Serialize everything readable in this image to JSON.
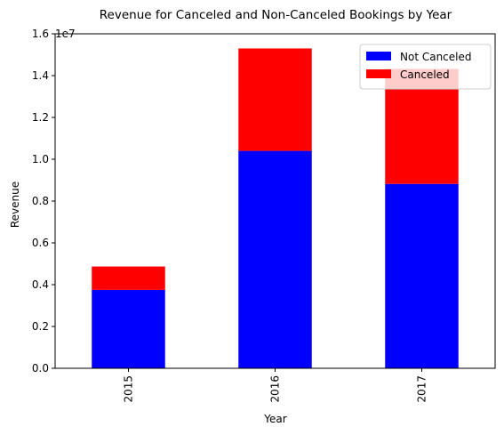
{
  "chart_data": {
    "type": "bar",
    "stacked": true,
    "title": "Revenue for Canceled and Non-Canceled Bookings by Year",
    "xlabel": "Year",
    "ylabel": "Revenue",
    "y_offset_label": "1e7",
    "categories": [
      "2015",
      "2016",
      "2017"
    ],
    "ylim": [
      0,
      16000000
    ],
    "yticks": [
      0,
      2000000,
      4000000,
      6000000,
      8000000,
      10000000,
      12000000,
      14000000,
      16000000
    ],
    "ytick_labels": [
      "0.0",
      "0.2",
      "0.4",
      "0.6",
      "0.8",
      "1.0",
      "1.2",
      "1.4",
      "1.6"
    ],
    "series": [
      {
        "name": "Not Canceled",
        "color": "#0000ff",
        "values": [
          3750000,
          10400000,
          8820000
        ]
      },
      {
        "name": "Canceled",
        "color": "#ff0000",
        "values": [
          1120000,
          4900000,
          5500000
        ]
      }
    ],
    "legend_position": "top-right",
    "grid": false
  }
}
